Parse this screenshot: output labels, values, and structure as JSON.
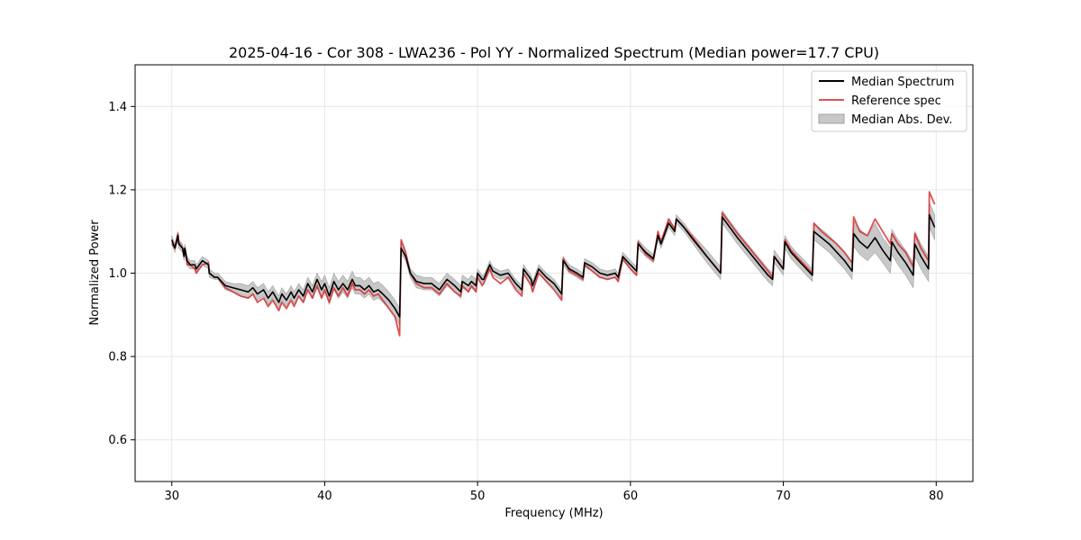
{
  "chart_data": {
    "type": "line",
    "title": "2025-04-16 - Cor 308 - LWA236 - Pol YY - Normalized Spectrum (Median power=17.7 CPU)",
    "xlabel": "Frequency (MHz)",
    "ylabel": "Normalized Power",
    "xlim": [
      27.6,
      82.4
    ],
    "ylim": [
      0.5,
      1.5
    ],
    "xticks": [
      30,
      40,
      50,
      60,
      70,
      80
    ],
    "yticks": [
      0.6,
      0.8,
      1.0,
      1.2,
      1.4
    ],
    "xtick_labels": [
      "30",
      "40",
      "50",
      "60",
      "70",
      "80"
    ],
    "ytick_labels": [
      "0.6",
      "0.8",
      "1.0",
      "1.2",
      "1.4"
    ],
    "grid": true,
    "legend_position": "top-right",
    "legend": {
      "median": "Median Spectrum",
      "reference": "Reference spec",
      "mad": "Median Abs. Dev."
    },
    "colors": {
      "median": "#000000",
      "reference": "#d62728",
      "mad_fill": "#c8c8c8",
      "mad_edge": "#a0a0a0",
      "grid": "#e6e6e6"
    },
    "series": [
      {
        "name": "Median Spectrum",
        "x": [
          30.0,
          30.2,
          30.4,
          30.45,
          30.7,
          30.8,
          30.85,
          31.0,
          31.2,
          31.5,
          31.6,
          32.0,
          32.4,
          32.45,
          32.8,
          33.0,
          33.5,
          34.0,
          34.5,
          35.0,
          35.3,
          35.6,
          36.0,
          36.3,
          36.6,
          37.0,
          37.2,
          37.5,
          37.8,
          38.0,
          38.3,
          38.6,
          38.9,
          39.2,
          39.5,
          39.8,
          40.0,
          40.3,
          40.6,
          40.9,
          41.2,
          41.5,
          41.8,
          42.0,
          42.3,
          42.6,
          42.9,
          43.2,
          43.5,
          43.8,
          44.2,
          44.6,
          44.9,
          45.0,
          45.3,
          45.6,
          46.0,
          46.5,
          47.0,
          47.5,
          48.0,
          48.5,
          48.9,
          49.0,
          49.4,
          49.6,
          49.9,
          50.0,
          50.3,
          50.4,
          50.8,
          51.0,
          51.5,
          52.0,
          52.5,
          52.9,
          53.0,
          53.5,
          53.6,
          54.0,
          54.5,
          55.0,
          55.5,
          55.6,
          56.0,
          56.5,
          56.9,
          57.0,
          57.5,
          58.0,
          58.5,
          59.0,
          59.2,
          59.5,
          60.0,
          60.4,
          60.5,
          61.0,
          61.5,
          61.8,
          62.0,
          62.5,
          62.9,
          63.0,
          63.5,
          64.0,
          65.0,
          65.9,
          66.0,
          66.5,
          67.0,
          68.0,
          69.0,
          69.3,
          69.4,
          70.0,
          70.1,
          70.5,
          71.0,
          71.9,
          72.0,
          72.5,
          73.0,
          73.5,
          74.0,
          74.5,
          74.6,
          75.0,
          75.5,
          76.0,
          76.5,
          77.0,
          77.1,
          77.5,
          78.0,
          78.5,
          78.6,
          79.0,
          79.5,
          79.55,
          79.9
        ],
        "values": [
          1.08,
          1.06,
          1.09,
          1.07,
          1.06,
          1.04,
          1.06,
          1.03,
          1.02,
          1.02,
          1.01,
          1.03,
          1.02,
          1.0,
          0.99,
          0.99,
          0.97,
          0.965,
          0.96,
          0.955,
          0.965,
          0.95,
          0.96,
          0.94,
          0.955,
          0.93,
          0.95,
          0.935,
          0.955,
          0.94,
          0.96,
          0.945,
          0.975,
          0.955,
          0.985,
          0.96,
          0.975,
          0.945,
          0.98,
          0.96,
          0.975,
          0.96,
          0.985,
          0.97,
          0.97,
          0.96,
          0.97,
          0.955,
          0.96,
          0.95,
          0.935,
          0.915,
          0.895,
          1.06,
          1.04,
          1.0,
          0.98,
          0.975,
          0.975,
          0.96,
          0.985,
          0.97,
          0.955,
          0.98,
          0.97,
          0.98,
          0.97,
          1.0,
          0.985,
          0.985,
          1.02,
          1.005,
          0.995,
          1.0,
          0.975,
          0.96,
          1.01,
          0.985,
          0.97,
          1.01,
          0.99,
          0.975,
          0.95,
          1.03,
          1.01,
          1.0,
          0.99,
          1.025,
          1.015,
          1.0,
          0.995,
          1.0,
          0.99,
          1.04,
          1.02,
          1.005,
          1.07,
          1.05,
          1.035,
          1.09,
          1.07,
          1.12,
          1.1,
          1.13,
          1.11,
          1.085,
          1.04,
          1.0,
          1.135,
          1.11,
          1.085,
          1.04,
          0.995,
          0.985,
          1.04,
          1.01,
          1.075,
          1.05,
          1.03,
          0.995,
          1.1,
          1.085,
          1.07,
          1.05,
          1.03,
          1.005,
          1.095,
          1.075,
          1.06,
          1.085,
          1.055,
          1.03,
          1.075,
          1.05,
          1.025,
          0.995,
          1.07,
          1.04,
          1.01,
          1.14,
          1.11
        ]
      },
      {
        "name": "Reference spec",
        "x": [
          30.0,
          30.2,
          30.4,
          30.45,
          30.7,
          30.8,
          30.85,
          31.0,
          31.2,
          31.5,
          31.6,
          32.0,
          32.4,
          32.45,
          32.8,
          33.0,
          33.5,
          34.0,
          34.5,
          35.0,
          35.3,
          35.6,
          36.0,
          36.3,
          36.6,
          37.0,
          37.2,
          37.5,
          37.8,
          38.0,
          38.3,
          38.6,
          38.9,
          39.2,
          39.5,
          39.8,
          40.0,
          40.3,
          40.6,
          40.9,
          41.2,
          41.5,
          41.8,
          42.0,
          42.3,
          42.6,
          42.9,
          43.2,
          43.5,
          43.8,
          44.2,
          44.6,
          44.9,
          45.0,
          45.3,
          45.6,
          46.0,
          46.5,
          47.0,
          47.5,
          48.0,
          48.5,
          48.9,
          49.0,
          49.4,
          49.6,
          49.9,
          50.0,
          50.3,
          50.4,
          50.8,
          51.0,
          51.5,
          52.0,
          52.5,
          52.9,
          53.0,
          53.5,
          53.6,
          54.0,
          54.5,
          55.0,
          55.5,
          55.6,
          56.0,
          56.5,
          56.9,
          57.0,
          57.5,
          58.0,
          58.5,
          59.0,
          59.2,
          59.5,
          60.0,
          60.4,
          60.5,
          61.0,
          61.5,
          61.8,
          62.0,
          62.5,
          62.9,
          63.0,
          63.5,
          64.0,
          65.0,
          65.9,
          66.0,
          66.5,
          67.0,
          68.0,
          69.0,
          69.3,
          69.4,
          70.0,
          70.1,
          70.5,
          71.0,
          71.9,
          72.0,
          72.5,
          73.0,
          73.5,
          74.0,
          74.5,
          74.6,
          75.0,
          75.5,
          76.0,
          76.5,
          77.0,
          77.1,
          77.5,
          78.0,
          78.5,
          78.6,
          79.0,
          79.5,
          79.55,
          79.9
        ],
        "values": [
          1.07,
          1.06,
          1.095,
          1.075,
          1.06,
          1.045,
          1.06,
          1.02,
          1.02,
          1.01,
          1.0,
          1.02,
          1.025,
          1.0,
          0.99,
          0.99,
          0.965,
          0.955,
          0.945,
          0.94,
          0.95,
          0.93,
          0.94,
          0.92,
          0.935,
          0.91,
          0.93,
          0.915,
          0.935,
          0.92,
          0.945,
          0.93,
          0.96,
          0.94,
          0.97,
          0.94,
          0.96,
          0.93,
          0.965,
          0.945,
          0.965,
          0.945,
          0.975,
          0.96,
          0.96,
          0.95,
          0.96,
          0.945,
          0.95,
          0.935,
          0.915,
          0.895,
          0.85,
          1.08,
          1.05,
          1.0,
          0.975,
          0.965,
          0.965,
          0.95,
          0.975,
          0.955,
          0.945,
          0.97,
          0.955,
          0.97,
          0.955,
          0.99,
          0.97,
          0.975,
          1.01,
          0.99,
          0.975,
          0.99,
          0.96,
          0.945,
          1.0,
          0.97,
          0.955,
          1.0,
          0.98,
          0.96,
          0.935,
          1.035,
          1.005,
          0.995,
          0.985,
          1.02,
          1.005,
          0.99,
          0.985,
          0.99,
          0.98,
          1.035,
          1.01,
          0.995,
          1.075,
          1.045,
          1.03,
          1.1,
          1.075,
          1.13,
          1.105,
          1.13,
          1.11,
          1.09,
          1.04,
          1.0,
          1.145,
          1.12,
          1.095,
          1.05,
          1.005,
          0.99,
          1.04,
          1.01,
          1.08,
          1.055,
          1.035,
          1.0,
          1.12,
          1.1,
          1.085,
          1.07,
          1.05,
          1.025,
          1.135,
          1.1,
          1.09,
          1.13,
          1.1,
          1.07,
          1.095,
          1.07,
          1.05,
          1.015,
          1.095,
          1.06,
          1.03,
          1.195,
          1.165
        ]
      }
    ],
    "mad_band": {
      "x": [
        30.0,
        30.2,
        30.4,
        30.45,
        30.7,
        30.8,
        30.85,
        31.0,
        31.2,
        31.5,
        31.6,
        32.0,
        32.4,
        32.45,
        32.8,
        33.0,
        33.5,
        34.0,
        34.5,
        35.0,
        35.3,
        35.6,
        36.0,
        36.3,
        36.6,
        37.0,
        37.2,
        37.5,
        37.8,
        38.0,
        38.3,
        38.6,
        38.9,
        39.2,
        39.5,
        39.8,
        40.0,
        40.3,
        40.6,
        40.9,
        41.2,
        41.5,
        41.8,
        42.0,
        42.3,
        42.6,
        42.9,
        43.2,
        43.5,
        43.8,
        44.2,
        44.6,
        44.9,
        45.0,
        45.3,
        45.6,
        46.0,
        46.5,
        47.0,
        47.5,
        48.0,
        48.5,
        48.9,
        49.0,
        49.4,
        49.6,
        49.9,
        50.0,
        50.3,
        50.4,
        50.8,
        51.0,
        51.5,
        52.0,
        52.5,
        52.9,
        53.0,
        53.5,
        53.6,
        54.0,
        54.5,
        55.0,
        55.5,
        55.6,
        56.0,
        56.5,
        56.9,
        57.0,
        57.5,
        58.0,
        58.5,
        59.0,
        59.2,
        59.5,
        60.0,
        60.4,
        60.5,
        61.0,
        61.5,
        61.8,
        62.0,
        62.5,
        62.9,
        63.0,
        63.5,
        64.0,
        65.0,
        65.9,
        66.0,
        66.5,
        67.0,
        68.0,
        69.0,
        69.3,
        69.4,
        70.0,
        70.1,
        70.5,
        71.0,
        71.9,
        72.0,
        72.5,
        73.0,
        73.5,
        74.0,
        74.5,
        74.6,
        75.0,
        75.5,
        76.0,
        76.5,
        77.0,
        77.1,
        77.5,
        78.0,
        78.5,
        78.6,
        79.0,
        79.5,
        79.55,
        79.9
      ],
      "lower": [
        1.07,
        1.05,
        1.08,
        1.06,
        1.05,
        1.03,
        1.05,
        1.02,
        1.01,
        1.01,
        1.0,
        1.02,
        1.01,
        0.99,
        0.985,
        0.985,
        0.96,
        0.955,
        0.945,
        0.94,
        0.95,
        0.935,
        0.945,
        0.925,
        0.94,
        0.915,
        0.935,
        0.92,
        0.94,
        0.925,
        0.945,
        0.93,
        0.96,
        0.94,
        0.965,
        0.94,
        0.955,
        0.925,
        0.96,
        0.94,
        0.955,
        0.94,
        0.965,
        0.95,
        0.95,
        0.94,
        0.95,
        0.935,
        0.94,
        0.93,
        0.915,
        0.895,
        0.875,
        1.045,
        1.03,
        0.99,
        0.965,
        0.96,
        0.96,
        0.945,
        0.97,
        0.955,
        0.94,
        0.965,
        0.955,
        0.965,
        0.955,
        0.99,
        0.975,
        0.975,
        1.01,
        0.995,
        0.985,
        0.99,
        0.965,
        0.95,
        1.0,
        0.975,
        0.96,
        1.0,
        0.98,
        0.965,
        0.94,
        1.02,
        1.0,
        0.99,
        0.98,
        1.015,
        1.005,
        0.99,
        0.985,
        0.99,
        0.98,
        1.03,
        1.01,
        0.995,
        1.06,
        1.04,
        1.025,
        1.08,
        1.06,
        1.11,
        1.09,
        1.12,
        1.1,
        1.075,
        1.025,
        0.985,
        1.12,
        1.095,
        1.07,
        1.025,
        0.98,
        0.97,
        1.025,
        0.995,
        1.06,
        1.035,
        1.015,
        0.98,
        1.08,
        1.065,
        1.05,
        1.03,
        1.01,
        0.985,
        1.065,
        1.045,
        1.03,
        1.05,
        1.025,
        1.0,
        1.045,
        1.02,
        0.995,
        0.965,
        1.04,
        1.01,
        0.98,
        1.11,
        1.08
      ],
      "upper": [
        1.09,
        1.07,
        1.1,
        1.08,
        1.07,
        1.05,
        1.07,
        1.04,
        1.03,
        1.03,
        1.02,
        1.04,
        1.03,
        1.01,
        1.0,
        1.0,
        0.98,
        0.975,
        0.975,
        0.97,
        0.98,
        0.965,
        0.975,
        0.955,
        0.97,
        0.945,
        0.965,
        0.95,
        0.97,
        0.955,
        0.975,
        0.96,
        0.99,
        0.97,
        1.0,
        0.98,
        0.995,
        0.965,
        1.0,
        0.98,
        0.995,
        0.98,
        1.005,
        0.99,
        0.99,
        0.98,
        0.99,
        0.975,
        0.98,
        0.97,
        0.955,
        0.935,
        0.915,
        1.075,
        1.05,
        1.01,
        0.995,
        0.99,
        0.99,
        0.975,
        1.0,
        0.985,
        0.97,
        0.995,
        0.985,
        0.995,
        0.985,
        1.01,
        0.995,
        0.995,
        1.03,
        1.015,
        1.005,
        1.01,
        0.985,
        0.97,
        1.02,
        0.995,
        0.98,
        1.02,
        1.0,
        0.985,
        0.96,
        1.04,
        1.02,
        1.01,
        1.0,
        1.035,
        1.025,
        1.01,
        1.005,
        1.01,
        1.0,
        1.05,
        1.03,
        1.015,
        1.08,
        1.06,
        1.045,
        1.1,
        1.08,
        1.13,
        1.11,
        1.14,
        1.12,
        1.095,
        1.055,
        1.015,
        1.15,
        1.125,
        1.1,
        1.055,
        1.01,
        1.0,
        1.055,
        1.025,
        1.09,
        1.065,
        1.045,
        1.01,
        1.12,
        1.105,
        1.09,
        1.07,
        1.05,
        1.025,
        1.125,
        1.105,
        1.09,
        1.12,
        1.085,
        1.06,
        1.105,
        1.08,
        1.055,
        1.025,
        1.1,
        1.07,
        1.04,
        1.17,
        1.14
      ]
    }
  }
}
